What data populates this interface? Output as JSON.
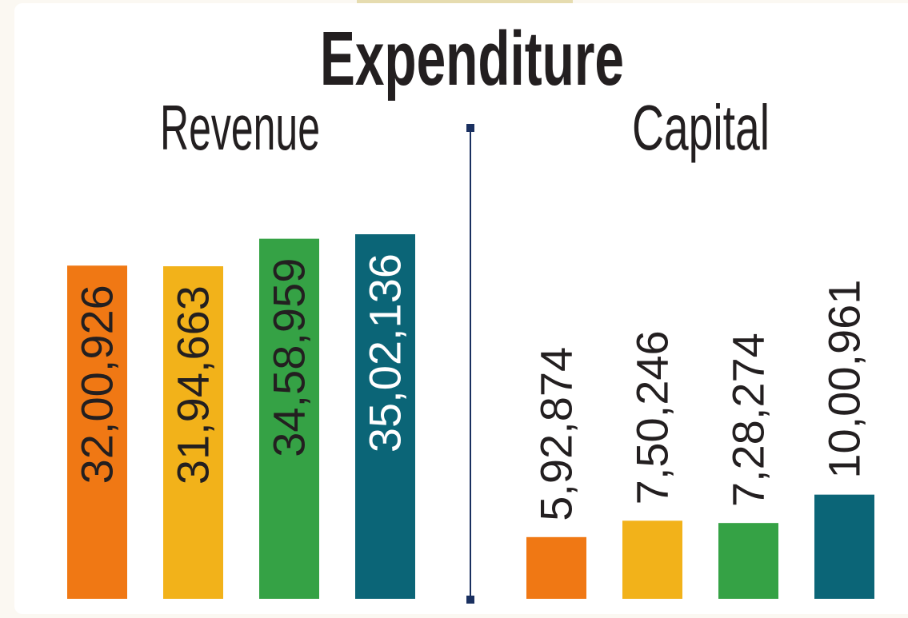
{
  "title": "Expenditure",
  "chart_data": [
    {
      "type": "bar",
      "title": "Revenue",
      "values": [
        3200926,
        3194663,
        3458959,
        3502136
      ],
      "value_labels": [
        "32,00,926",
        "31,94,663",
        "34,58,959",
        "35,02,136"
      ],
      "colors": [
        "#f07814",
        "#f2b21a",
        "#35a245",
        "#0b6577"
      ]
    },
    {
      "type": "bar",
      "title": "Capital",
      "values": [
        592874,
        750246,
        728274,
        1000961
      ],
      "value_labels": [
        "5,92,874",
        "7,50,246",
        "7,28,274",
        "10,00,961"
      ],
      "colors": [
        "#f07814",
        "#f2b21a",
        "#35a245",
        "#0b6577"
      ]
    }
  ]
}
